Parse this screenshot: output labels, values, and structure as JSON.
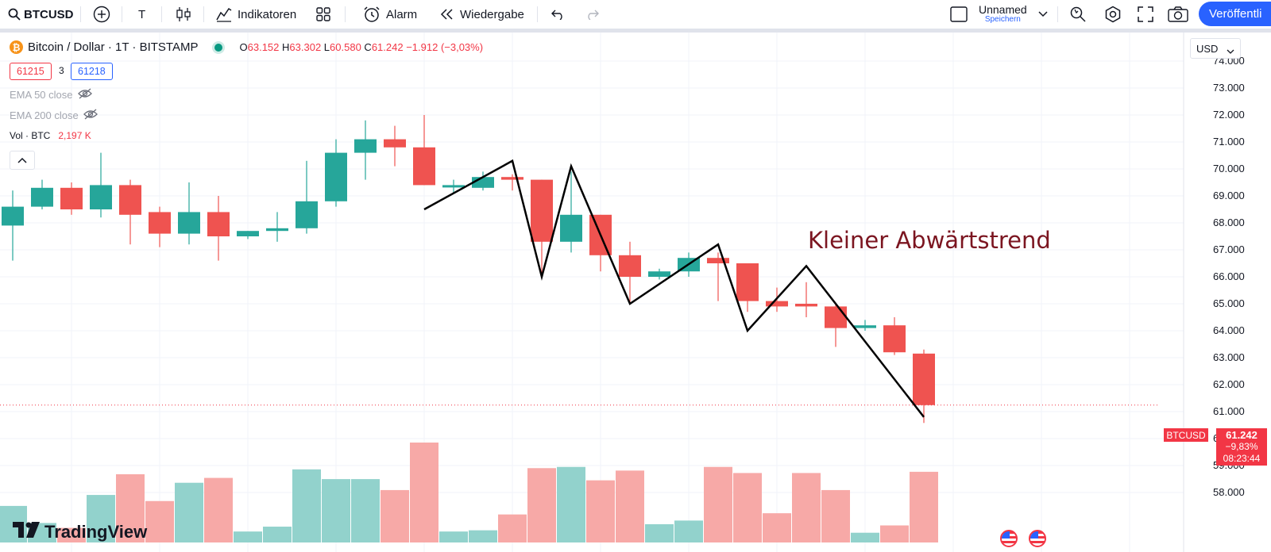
{
  "toolbar": {
    "symbol": "BTCUSD",
    "interval": "T",
    "indicators": "Indikatoren",
    "alert": "Alarm",
    "replay": "Wiedergabe",
    "layout_name": "Unnamed",
    "save_label": "Speichern",
    "publish": "Veröffentli"
  },
  "legend": {
    "title": "Bitcoin / Dollar · 1T · BITSTAMP",
    "o_label": "O",
    "o": "63.152",
    "h_label": "H",
    "h": "63.302",
    "l_label": "L",
    "l": "60.580",
    "c_label": "C",
    "c": "61.242",
    "change": "−1.912 (−3,03%)",
    "bid": "61215",
    "spread": "3",
    "ask": "61218"
  },
  "indicators": {
    "ema50": "EMA 50 close",
    "ema200": "EMA 200 close",
    "vol_label": "Vol · BTC",
    "vol_value": "2,197 K"
  },
  "currency": "USD",
  "annotation": "Kleiner Abwärtstrend",
  "price_tag": {
    "symbol": "BTCUSD",
    "price": "61.242",
    "change": "−9,83%",
    "countdown": "08:23:44"
  },
  "brand": "TradingView",
  "icons": [
    "search-icon",
    "plus-circle-icon",
    "candles-icon",
    "indicators-icon",
    "alarm-icon",
    "replay-icon",
    "undo-icon",
    "redo-icon",
    "layout-icon",
    "chevron-down-icon",
    "quick-search-icon",
    "settings-icon",
    "fullscreen-icon",
    "camera-icon",
    "eye-off-icon",
    "chevron-up-icon",
    "flag-us-icon"
  ],
  "colors": {
    "up": "#26a69a",
    "down": "#ef5350",
    "volume_up": "#92d2cc",
    "volume_down": "#f7a9a7",
    "trendline": "#000000",
    "annotation": "#7b1520",
    "accent": "#2962ff"
  },
  "chart_data": {
    "type": "candlestick",
    "grid": true,
    "y_axis": {
      "ticks": [
        58000,
        59000,
        60000,
        61000,
        62000,
        63000,
        64000,
        65000,
        66000,
        67000,
        68000,
        69000,
        70000,
        71000,
        72000,
        73000,
        74000
      ],
      "tick_labels": [
        "58.000",
        "59.000",
        "60.000",
        "61.000",
        "62.000",
        "63.000",
        "64.000",
        "65.000",
        "66.000",
        "67.000",
        "68.000",
        "69.000",
        "70.000",
        "71.000",
        "72.000",
        "73.000",
        "74.000"
      ],
      "range": [
        57400,
        74500
      ]
    },
    "candles": [
      {
        "o": 67900,
        "h": 69200,
        "l": 66600,
        "c": 68600
      },
      {
        "o": 68600,
        "h": 69600,
        "l": 68500,
        "c": 69300
      },
      {
        "o": 69300,
        "h": 69500,
        "l": 68300,
        "c": 68500
      },
      {
        "o": 68500,
        "h": 70600,
        "l": 68200,
        "c": 69400
      },
      {
        "o": 69400,
        "h": 69600,
        "l": 67200,
        "c": 68300
      },
      {
        "o": 68400,
        "h": 68600,
        "l": 67100,
        "c": 67600
      },
      {
        "o": 67600,
        "h": 69500,
        "l": 67200,
        "c": 68400
      },
      {
        "o": 68400,
        "h": 69000,
        "l": 66600,
        "c": 67500
      },
      {
        "o": 67500,
        "h": 67700,
        "l": 67400,
        "c": 67700
      },
      {
        "o": 67700,
        "h": 68400,
        "l": 67300,
        "c": 67800
      },
      {
        "o": 67800,
        "h": 70300,
        "l": 67600,
        "c": 68800
      },
      {
        "o": 68800,
        "h": 71100,
        "l": 68600,
        "c": 70600
      },
      {
        "o": 70600,
        "h": 71800,
        "l": 69600,
        "c": 71100
      },
      {
        "o": 71100,
        "h": 71600,
        "l": 70100,
        "c": 70800
      },
      {
        "o": 70800,
        "h": 72000,
        "l": 69400,
        "c": 69400
      },
      {
        "o": 69400,
        "h": 69600,
        "l": 69100,
        "c": 69400
      },
      {
        "o": 69300,
        "h": 69900,
        "l": 69200,
        "c": 69700
      },
      {
        "o": 69700,
        "h": 69800,
        "l": 69200,
        "c": 69600
      },
      {
        "o": 69600,
        "h": 69600,
        "l": 66000,
        "c": 67300
      },
      {
        "o": 67300,
        "h": 69900,
        "l": 66900,
        "c": 68300
      },
      {
        "o": 68300,
        "h": 68300,
        "l": 66200,
        "c": 66800
      },
      {
        "o": 66800,
        "h": 67300,
        "l": 65000,
        "c": 66000
      },
      {
        "o": 66000,
        "h": 66300,
        "l": 65900,
        "c": 66200
      },
      {
        "o": 66200,
        "h": 66900,
        "l": 66000,
        "c": 66700
      },
      {
        "o": 66700,
        "h": 66900,
        "l": 65100,
        "c": 66500
      },
      {
        "o": 66500,
        "h": 66400,
        "l": 64700,
        "c": 65100
      },
      {
        "o": 65100,
        "h": 65600,
        "l": 64700,
        "c": 64900
      },
      {
        "o": 65000,
        "h": 65800,
        "l": 64500,
        "c": 64900
      },
      {
        "o": 64900,
        "h": 65000,
        "l": 63400,
        "c": 64100
      },
      {
        "o": 64100,
        "h": 64400,
        "l": 64000,
        "c": 64200
      },
      {
        "o": 64200,
        "h": 64500,
        "l": 63100,
        "c": 63200
      },
      {
        "o": 63152,
        "h": 63302,
        "l": 60580,
        "c": 61242
      }
    ],
    "volume_relative": [
      0.3,
      0.16,
      0.12,
      0.39,
      0.56,
      0.34,
      0.49,
      0.53,
      0.09,
      0.13,
      0.6,
      0.52,
      0.52,
      0.43,
      0.82,
      0.09,
      0.1,
      0.23,
      0.61,
      0.62,
      0.51,
      0.59,
      0.15,
      0.18,
      0.62,
      0.57,
      0.24,
      0.57,
      0.43,
      0.08,
      0.14,
      0.58
    ],
    "trendline": [
      [
        14,
        68500
      ],
      [
        17,
        70300
      ],
      [
        18,
        66000
      ],
      [
        19,
        70100
      ],
      [
        21,
        65000
      ],
      [
        24,
        67200
      ],
      [
        25,
        64000
      ],
      [
        27,
        66400
      ],
      [
        31,
        60800
      ]
    ],
    "last_price": 61242
  }
}
